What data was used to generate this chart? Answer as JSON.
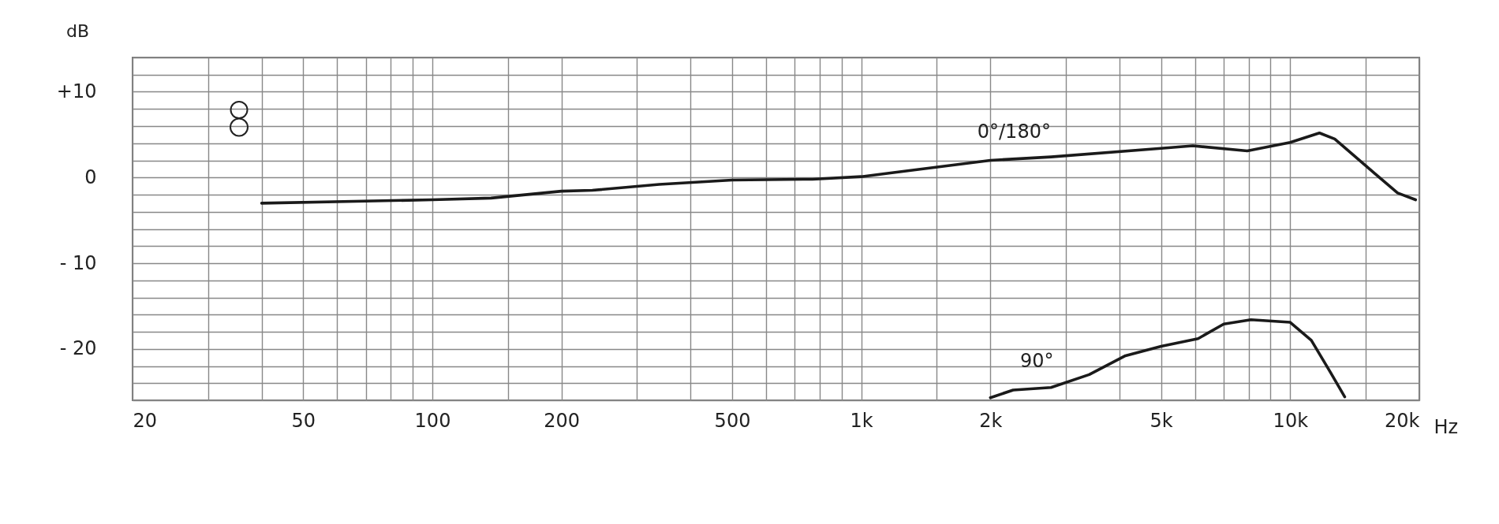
{
  "chart_data": {
    "type": "line",
    "xlabel": "Hz",
    "ylabel": "dB",
    "log": "x",
    "grid": true,
    "marker": "none",
    "line_style": "solid",
    "xlim": [
      20,
      20000
    ],
    "xticks": [
      20,
      {
        "value": 30,
        "label": null
      },
      {
        "value": 40,
        "label": null
      },
      50,
      {
        "value": 60,
        "label": null
      },
      {
        "value": 70,
        "label": null
      },
      {
        "value": 80,
        "label": null
      },
      {
        "value": 90,
        "label": null
      },
      100,
      {
        "value": 150,
        "label": null
      },
      200,
      {
        "value": 300,
        "label": null
      },
      {
        "value": 400,
        "label": null
      },
      500,
      {
        "value": 600,
        "label": null
      },
      {
        "value": 700,
        "label": null
      },
      {
        "value": 800,
        "label": null
      },
      {
        "value": 900,
        "label": null
      },
      {
        "value": 1000,
        "label": "1k"
      },
      {
        "value": 1500,
        "label": null
      },
      {
        "value": 2000,
        "label": "2k"
      },
      {
        "value": 3000,
        "label": null
      },
      {
        "value": 4000,
        "label": null
      },
      {
        "value": 5000,
        "label": "5k"
      },
      {
        "value": 6000,
        "label": null
      },
      {
        "value": 7000,
        "label": null
      },
      {
        "value": 8000,
        "label": null
      },
      {
        "value": 9000,
        "label": null
      },
      {
        "value": 10000,
        "label": "10k"
      },
      {
        "value": 15000,
        "label": null
      },
      {
        "value": 20000,
        "label": "20k"
      }
    ],
    "ylim": [
      -26,
      14
    ],
    "yticks": [
      {
        "value": -26,
        "label": null
      },
      {
        "value": -24,
        "label": null
      },
      {
        "value": -22,
        "label": null
      },
      {
        "value": -20,
        "label": "- 20"
      },
      {
        "value": -18,
        "label": null
      },
      {
        "value": -16,
        "label": null
      },
      {
        "value": -14,
        "label": null
      },
      {
        "value": -12,
        "label": null
      },
      {
        "value": -10,
        "label": "- 10"
      },
      {
        "value": -8,
        "label": null
      },
      {
        "value": -6,
        "label": null
      },
      {
        "value": -4,
        "label": null
      },
      {
        "value": -2,
        "label": null
      },
      0,
      {
        "value": 2,
        "label": null
      },
      {
        "value": 4,
        "label": null
      },
      {
        "value": 6,
        "label": null
      },
      {
        "value": 8,
        "label": null
      },
      {
        "value": 10,
        "label": "+10"
      },
      {
        "value": 12,
        "label": null
      },
      {
        "value": 14,
        "label": null
      }
    ],
    "series": [
      {
        "name": "0°/180°",
        "color": "#1a1a1a",
        "x": [
          40,
          100,
          137,
          200,
          236,
          338,
          500,
          769,
          1000,
          1160,
          2000,
          2770,
          5000,
          5930,
          7940,
          10000,
          11700,
          12700,
          15800,
          17800,
          19600
        ],
        "values": [
          -3.0,
          -2.6,
          -2.4,
          -1.6,
          -1.5,
          -0.8,
          -0.3,
          -0.2,
          0.1,
          0.5,
          2.0,
          2.4,
          3.4,
          3.7,
          3.1,
          4.1,
          5.2,
          4.5,
          0.4,
          -1.8,
          -2.6
        ]
      },
      {
        "name": "90°",
        "color": "#1a1a1a",
        "x": [
          2000,
          2260,
          2770,
          3400,
          4130,
          5000,
          6100,
          7000,
          8100,
          10000,
          11200,
          12400,
          13400
        ],
        "values": [
          -25.7,
          -24.8,
          -24.5,
          -23.0,
          -20.8,
          -19.7,
          -18.8,
          -17.1,
          -16.6,
          -16.9,
          -19.0,
          -22.7,
          -25.6
        ]
      }
    ]
  }
}
